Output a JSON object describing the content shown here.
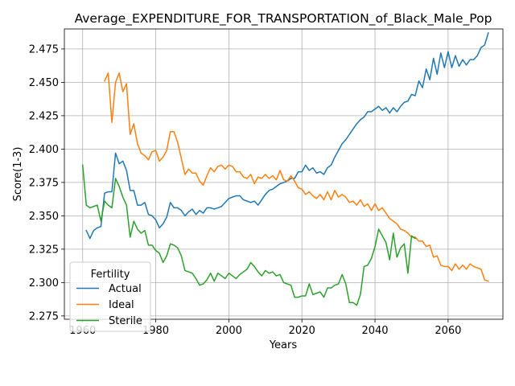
{
  "chart_data": {
    "type": "line",
    "title": "Average_EXPENDITURE_FOR_TRANSPORTATION_of_Black_Male_Pop",
    "xlabel": "Years",
    "ylabel": "Score(1-3)",
    "xlim": [
      1955,
      2075
    ],
    "ylim": [
      2.2725,
      2.49
    ],
    "xticks": [
      1960,
      1980,
      2000,
      2020,
      2040,
      2060
    ],
    "yticks": [
      2.275,
      2.3,
      2.325,
      2.35,
      2.375,
      2.4,
      2.425,
      2.45,
      2.475
    ],
    "grid": true,
    "legend": {
      "title": "Fertility",
      "placement": "lower-left"
    },
    "series": [
      {
        "name": "Actual",
        "color": "#1f77b4",
        "points": [
          [
            1961,
            2.339
          ],
          [
            1962,
            2.333
          ],
          [
            1963,
            2.339
          ],
          [
            1964,
            2.341
          ],
          [
            1965,
            2.342
          ],
          [
            1966,
            2.367
          ],
          [
            1967,
            2.368
          ],
          [
            1968,
            2.368
          ],
          [
            1969,
            2.397
          ],
          [
            1970,
            2.389
          ],
          [
            1971,
            2.391
          ],
          [
            1972,
            2.384
          ],
          [
            1973,
            2.369
          ],
          [
            1974,
            2.369
          ],
          [
            1975,
            2.358
          ],
          [
            1976,
            2.358
          ],
          [
            1977,
            2.36
          ],
          [
            1978,
            2.351
          ],
          [
            1979,
            2.35
          ],
          [
            1980,
            2.347
          ],
          [
            1981,
            2.341
          ],
          [
            1982,
            2.344
          ],
          [
            1983,
            2.349
          ],
          [
            1984,
            2.36
          ],
          [
            1985,
            2.356
          ],
          [
            1986,
            2.356
          ],
          [
            1987,
            2.354
          ],
          [
            1988,
            2.35
          ],
          [
            1989,
            2.353
          ],
          [
            1990,
            2.355
          ],
          [
            1991,
            2.351
          ],
          [
            1992,
            2.354
          ],
          [
            1993,
            2.352
          ],
          [
            1994,
            2.356
          ],
          [
            1995,
            2.356
          ],
          [
            1996,
            2.355
          ],
          [
            1997,
            2.356
          ],
          [
            1998,
            2.357
          ],
          [
            1999,
            2.36
          ],
          [
            2000,
            2.363
          ],
          [
            2001,
            2.364
          ],
          [
            2002,
            2.365
          ],
          [
            2003,
            2.365
          ],
          [
            2004,
            2.362
          ],
          [
            2005,
            2.361
          ],
          [
            2006,
            2.36
          ],
          [
            2007,
            2.361
          ],
          [
            2008,
            2.358
          ],
          [
            2009,
            2.362
          ],
          [
            2010,
            2.366
          ],
          [
            2011,
            2.369
          ],
          [
            2012,
            2.37
          ],
          [
            2013,
            2.372
          ],
          [
            2014,
            2.374
          ],
          [
            2015,
            2.375
          ],
          [
            2016,
            2.376
          ],
          [
            2017,
            2.378
          ],
          [
            2018,
            2.378
          ],
          [
            2019,
            2.383
          ],
          [
            2020,
            2.383
          ],
          [
            2021,
            2.388
          ],
          [
            2022,
            2.384
          ],
          [
            2023,
            2.386
          ],
          [
            2024,
            2.382
          ],
          [
            2025,
            2.383
          ],
          [
            2026,
            2.381
          ],
          [
            2027,
            2.386
          ],
          [
            2028,
            2.388
          ],
          [
            2029,
            2.394
          ],
          [
            2030,
            2.399
          ],
          [
            2031,
            2.404
          ],
          [
            2032,
            2.407
          ],
          [
            2033,
            2.411
          ],
          [
            2034,
            2.415
          ],
          [
            2035,
            2.419
          ],
          [
            2036,
            2.422
          ],
          [
            2037,
            2.424
          ],
          [
            2038,
            2.428
          ],
          [
            2039,
            2.428
          ],
          [
            2040,
            2.43
          ],
          [
            2041,
            2.432
          ],
          [
            2042,
            2.429
          ],
          [
            2043,
            2.431
          ],
          [
            2044,
            2.427
          ],
          [
            2045,
            2.431
          ],
          [
            2046,
            2.428
          ],
          [
            2047,
            2.432
          ],
          [
            2048,
            2.435
          ],
          [
            2049,
            2.436
          ],
          [
            2050,
            2.441
          ],
          [
            2051,
            2.44
          ],
          [
            2052,
            2.451
          ],
          [
            2053,
            2.446
          ],
          [
            2054,
            2.46
          ],
          [
            2055,
            2.452
          ],
          [
            2056,
            2.468
          ],
          [
            2057,
            2.456
          ],
          [
            2058,
            2.472
          ],
          [
            2059,
            2.461
          ],
          [
            2060,
            2.473
          ],
          [
            2061,
            2.461
          ],
          [
            2062,
            2.47
          ],
          [
            2063,
            2.462
          ],
          [
            2064,
            2.467
          ],
          [
            2065,
            2.463
          ],
          [
            2066,
            2.467
          ],
          [
            2067,
            2.467
          ],
          [
            2068,
            2.47
          ],
          [
            2069,
            2.476
          ],
          [
            2070,
            2.478
          ],
          [
            2071,
            2.487
          ]
        ]
      },
      {
        "name": "Ideal",
        "color": "#ff7f0e",
        "points": [
          [
            1966,
            2.451
          ],
          [
            1967,
            2.457
          ],
          [
            1968,
            2.42
          ],
          [
            1969,
            2.45
          ],
          [
            1970,
            2.457
          ],
          [
            1971,
            2.443
          ],
          [
            1972,
            2.449
          ],
          [
            1973,
            2.411
          ],
          [
            1974,
            2.419
          ],
          [
            1975,
            2.404
          ],
          [
            1976,
            2.397
          ],
          [
            1977,
            2.395
          ],
          [
            1978,
            2.392
          ],
          [
            1979,
            2.398
          ],
          [
            1980,
            2.399
          ],
          [
            1981,
            2.391
          ],
          [
            1982,
            2.394
          ],
          [
            1983,
            2.399
          ],
          [
            1984,
            2.413
          ],
          [
            1985,
            2.413
          ],
          [
            1986,
            2.405
          ],
          [
            1987,
            2.393
          ],
          [
            1988,
            2.381
          ],
          [
            1989,
            2.385
          ],
          [
            1990,
            2.382
          ],
          [
            1991,
            2.382
          ],
          [
            1992,
            2.376
          ],
          [
            1993,
            2.373
          ],
          [
            1994,
            2.38
          ],
          [
            1995,
            2.386
          ],
          [
            1996,
            2.383
          ],
          [
            1997,
            2.387
          ],
          [
            1998,
            2.388
          ],
          [
            1999,
            2.385
          ],
          [
            2000,
            2.388
          ],
          [
            2001,
            2.387
          ],
          [
            2002,
            2.383
          ],
          [
            2003,
            2.383
          ],
          [
            2004,
            2.379
          ],
          [
            2005,
            2.378
          ],
          [
            2006,
            2.381
          ],
          [
            2007,
            2.374
          ],
          [
            2008,
            2.379
          ],
          [
            2009,
            2.378
          ],
          [
            2010,
            2.381
          ],
          [
            2011,
            2.378
          ],
          [
            2012,
            2.38
          ],
          [
            2013,
            2.377
          ],
          [
            2014,
            2.384
          ],
          [
            2015,
            2.377
          ],
          [
            2016,
            2.376
          ],
          [
            2017,
            2.38
          ],
          [
            2018,
            2.376
          ],
          [
            2019,
            2.371
          ],
          [
            2020,
            2.37
          ],
          [
            2021,
            2.366
          ],
          [
            2022,
            2.368
          ],
          [
            2023,
            2.365
          ],
          [
            2024,
            2.363
          ],
          [
            2025,
            2.366
          ],
          [
            2026,
            2.362
          ],
          [
            2027,
            2.368
          ],
          [
            2028,
            2.362
          ],
          [
            2029,
            2.369
          ],
          [
            2030,
            2.364
          ],
          [
            2031,
            2.366
          ],
          [
            2032,
            2.364
          ],
          [
            2033,
            2.36
          ],
          [
            2034,
            2.361
          ],
          [
            2035,
            2.358
          ],
          [
            2036,
            2.362
          ],
          [
            2037,
            2.357
          ],
          [
            2038,
            2.359
          ],
          [
            2039,
            2.354
          ],
          [
            2040,
            2.359
          ],
          [
            2041,
            2.354
          ],
          [
            2042,
            2.356
          ],
          [
            2043,
            2.352
          ],
          [
            2044,
            2.348
          ],
          [
            2045,
            2.346
          ],
          [
            2046,
            2.344
          ],
          [
            2047,
            2.34
          ],
          [
            2048,
            2.339
          ],
          [
            2049,
            2.337
          ],
          [
            2050,
            2.334
          ],
          [
            2051,
            2.334
          ],
          [
            2052,
            2.331
          ],
          [
            2053,
            2.331
          ],
          [
            2054,
            2.327
          ],
          [
            2055,
            2.328
          ],
          [
            2056,
            2.319
          ],
          [
            2057,
            2.32
          ],
          [
            2058,
            2.313
          ],
          [
            2059,
            2.312
          ],
          [
            2060,
            2.312
          ],
          [
            2061,
            2.309
          ],
          [
            2062,
            2.314
          ],
          [
            2063,
            2.31
          ],
          [
            2064,
            2.313
          ],
          [
            2065,
            2.31
          ],
          [
            2066,
            2.314
          ],
          [
            2067,
            2.312
          ],
          [
            2068,
            2.311
          ],
          [
            2069,
            2.31
          ],
          [
            2070,
            2.302
          ],
          [
            2071,
            2.301
          ]
        ]
      },
      {
        "name": "Sterile",
        "color": "#2ca02c",
        "points": [
          [
            1960,
            2.388
          ],
          [
            1961,
            2.358
          ],
          [
            1962,
            2.356
          ],
          [
            1963,
            2.357
          ],
          [
            1964,
            2.358
          ],
          [
            1965,
            2.346
          ],
          [
            1966,
            2.361
          ],
          [
            1967,
            2.358
          ],
          [
            1968,
            2.356
          ],
          [
            1969,
            2.378
          ],
          [
            1970,
            2.372
          ],
          [
            1971,
            2.364
          ],
          [
            1972,
            2.358
          ],
          [
            1973,
            2.334
          ],
          [
            1974,
            2.346
          ],
          [
            1975,
            2.34
          ],
          [
            1976,
            2.337
          ],
          [
            1977,
            2.339
          ],
          [
            1978,
            2.328
          ],
          [
            1979,
            2.328
          ],
          [
            1980,
            2.324
          ],
          [
            1981,
            2.322
          ],
          [
            1982,
            2.315
          ],
          [
            1983,
            2.32
          ],
          [
            1984,
            2.329
          ],
          [
            1985,
            2.328
          ],
          [
            1986,
            2.326
          ],
          [
            1987,
            2.32
          ],
          [
            1988,
            2.309
          ],
          [
            1989,
            2.308
          ],
          [
            1990,
            2.307
          ],
          [
            1991,
            2.303
          ],
          [
            1992,
            2.298
          ],
          [
            1993,
            2.299
          ],
          [
            1994,
            2.302
          ],
          [
            1995,
            2.307
          ],
          [
            1996,
            2.301
          ],
          [
            1997,
            2.307
          ],
          [
            1998,
            2.305
          ],
          [
            1999,
            2.303
          ],
          [
            2000,
            2.307
          ],
          [
            2001,
            2.305
          ],
          [
            2002,
            2.303
          ],
          [
            2003,
            2.306
          ],
          [
            2004,
            2.308
          ],
          [
            2005,
            2.31
          ],
          [
            2006,
            2.315
          ],
          [
            2007,
            2.312
          ],
          [
            2008,
            2.308
          ],
          [
            2009,
            2.305
          ],
          [
            2010,
            2.309
          ],
          [
            2011,
            2.307
          ],
          [
            2012,
            2.308
          ],
          [
            2013,
            2.305
          ],
          [
            2014,
            2.306
          ],
          [
            2015,
            2.3
          ],
          [
            2016,
            2.299
          ],
          [
            2017,
            2.298
          ],
          [
            2018,
            2.289
          ],
          [
            2019,
            2.289
          ],
          [
            2020,
            2.29
          ],
          [
            2021,
            2.29
          ],
          [
            2022,
            2.299
          ],
          [
            2023,
            2.291
          ],
          [
            2024,
            2.292
          ],
          [
            2025,
            2.293
          ],
          [
            2026,
            2.289
          ],
          [
            2027,
            2.296
          ],
          [
            2028,
            2.296
          ],
          [
            2029,
            2.298
          ],
          [
            2030,
            2.299
          ],
          [
            2031,
            2.306
          ],
          [
            2032,
            2.299
          ],
          [
            2033,
            2.285
          ],
          [
            2034,
            2.285
          ],
          [
            2035,
            2.283
          ],
          [
            2036,
            2.291
          ],
          [
            2037,
            2.312
          ],
          [
            2038,
            2.313
          ],
          [
            2039,
            2.318
          ],
          [
            2040,
            2.327
          ],
          [
            2041,
            2.34
          ],
          [
            2042,
            2.335
          ],
          [
            2043,
            2.33
          ],
          [
            2044,
            2.317
          ],
          [
            2045,
            2.337
          ],
          [
            2046,
            2.319
          ],
          [
            2047,
            2.326
          ],
          [
            2048,
            2.329
          ],
          [
            2049,
            2.307
          ],
          [
            2050,
            2.335
          ],
          [
            2051,
            2.333
          ]
        ]
      }
    ]
  }
}
